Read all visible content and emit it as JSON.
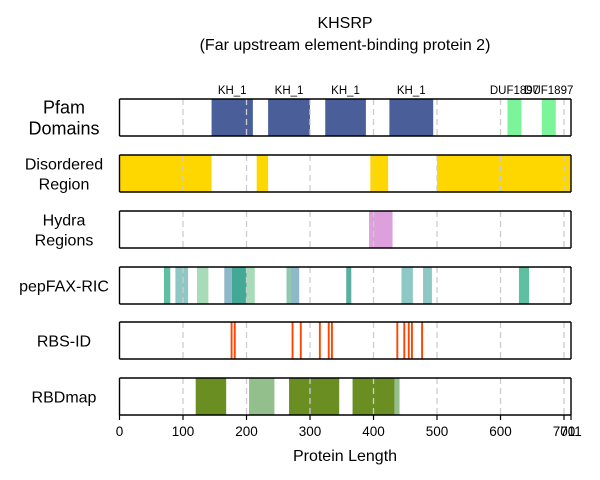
{
  "chart_data": {
    "type": "track",
    "title": "KHSRP",
    "subtitle": "(Far upstream element-binding protein 2)",
    "xlabel": "Protein Length",
    "xlim": [
      0,
      711
    ],
    "xticks": [
      0,
      100,
      200,
      300,
      400,
      500,
      600,
      700,
      711
    ],
    "xtick_labels": [
      "0",
      "100",
      "200",
      "300",
      "400",
      "500",
      "600",
      "700",
      "711"
    ],
    "grid_lines": [
      100,
      200,
      300,
      400,
      500,
      600,
      700
    ],
    "tracks": [
      {
        "name": "Pfam\nDomains",
        "label_lines": [
          "Pfam",
          "Domains"
        ],
        "segments": [
          {
            "start": 145,
            "end": 210,
            "color": "#4a5f9a",
            "label": "KH_1"
          },
          {
            "start": 234,
            "end": 300,
            "color": "#4a5f9a",
            "label": "KH_1"
          },
          {
            "start": 324,
            "end": 388,
            "color": "#4a5f9a",
            "label": "KH_1"
          },
          {
            "start": 425,
            "end": 494,
            "color": "#4a5f9a",
            "label": "KH_1"
          },
          {
            "start": 611,
            "end": 633,
            "color": "#7cf49a",
            "label": "DUF1897"
          },
          {
            "start": 665,
            "end": 687,
            "color": "#7cf49a",
            "label": "DUF1897"
          }
        ]
      },
      {
        "name": "Disordered Region",
        "label_lines": [
          "Disordered",
          "Region"
        ],
        "segments": [
          {
            "start": 0,
            "end": 145,
            "color": "#ffd700"
          },
          {
            "start": 216,
            "end": 234,
            "color": "#ffd700"
          },
          {
            "start": 395,
            "end": 423,
            "color": "#ffd700"
          },
          {
            "start": 500,
            "end": 711,
            "color": "#ffd700"
          }
        ]
      },
      {
        "name": "Hydra Regions",
        "label_lines": [
          "Hydra",
          "Regions"
        ],
        "segments": [
          {
            "start": 393,
            "end": 430,
            "color": "#dda0dd"
          }
        ]
      },
      {
        "name": "pepFAX-RIC",
        "label_lines": [
          "pepFAX-RIC"
        ],
        "segments": [
          {
            "start": 70,
            "end": 80,
            "color": "#5fbfa2"
          },
          {
            "start": 88,
            "end": 108,
            "color": "#8ec8c4"
          },
          {
            "start": 122,
            "end": 140,
            "color": "#a8dcb8"
          },
          {
            "start": 165,
            "end": 177,
            "color": "#8fb8c8"
          },
          {
            "start": 177,
            "end": 200,
            "color": "#43a896"
          },
          {
            "start": 200,
            "end": 213,
            "color": "#a8dcb8"
          },
          {
            "start": 263,
            "end": 270,
            "color": "#90c8b0"
          },
          {
            "start": 270,
            "end": 283,
            "color": "#8fb8c8"
          },
          {
            "start": 357,
            "end": 365,
            "color": "#5ab0a0"
          },
          {
            "start": 444,
            "end": 462,
            "color": "#8ec8c4"
          },
          {
            "start": 478,
            "end": 492,
            "color": "#8ec8c4"
          },
          {
            "start": 629,
            "end": 645,
            "color": "#5fbfa2"
          }
        ]
      },
      {
        "name": "RBS-ID",
        "label_lines": [
          "RBS-ID"
        ],
        "segments": [
          {
            "start": 175,
            "end": 178,
            "color": "#ff4500"
          },
          {
            "start": 180,
            "end": 183,
            "color": "#ff4500"
          },
          {
            "start": 271,
            "end": 274,
            "color": "#ff4500"
          },
          {
            "start": 284,
            "end": 287,
            "color": "#ff4500"
          },
          {
            "start": 314,
            "end": 317,
            "color": "#ff4500"
          },
          {
            "start": 328,
            "end": 331,
            "color": "#ff4500"
          },
          {
            "start": 333,
            "end": 336,
            "color": "#ff4500"
          },
          {
            "start": 436,
            "end": 439,
            "color": "#ff4500"
          },
          {
            "start": 447,
            "end": 450,
            "color": "#ff4500"
          },
          {
            "start": 454,
            "end": 457,
            "color": "#ff4500"
          },
          {
            "start": 459,
            "end": 462,
            "color": "#ff4500"
          },
          {
            "start": 475,
            "end": 478,
            "color": "#ff4500"
          }
        ]
      },
      {
        "name": "RBDmap",
        "label_lines": [
          "RBDmap"
        ],
        "segments": [
          {
            "start": 120,
            "end": 168,
            "color": "#6b8e23"
          },
          {
            "start": 204,
            "end": 244,
            "color": "#93bf8c"
          },
          {
            "start": 267,
            "end": 346,
            "color": "#6b8e23"
          },
          {
            "start": 367,
            "end": 433,
            "color": "#6b8e23"
          },
          {
            "start": 433,
            "end": 441,
            "color": "#93bf8c"
          }
        ]
      }
    ]
  }
}
